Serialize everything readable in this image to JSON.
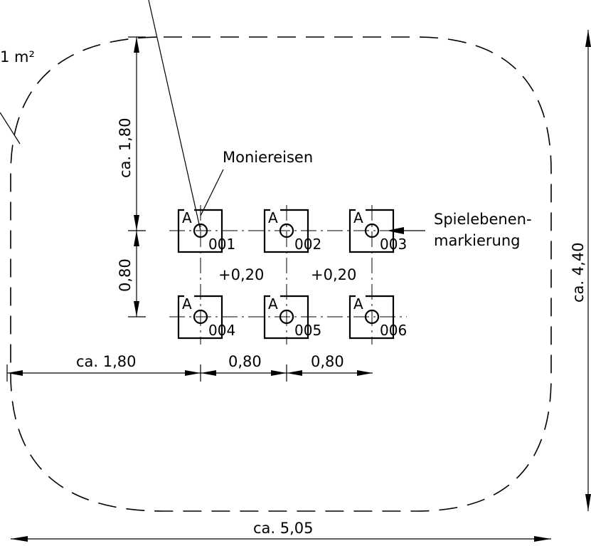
{
  "labels": {
    "area": "1 m²",
    "moniereisen": "Moniereisen",
    "spielebenen_line1": "Spielebenen-",
    "spielebenen_line2": "markierung",
    "dim_top_vertical": "ca. 1,80",
    "dim_left_vertical": "0,80",
    "dim_right_vertical": "ca. 4,40",
    "dim_bottom_left": "ca. 1,80",
    "dim_bottom_mid1": "0,80",
    "dim_bottom_mid2": "0,80",
    "dim_total_width": "ca. 5,05",
    "offset1": "+0,20",
    "offset2": "+0,20"
  },
  "markers": [
    {
      "letter": "A",
      "code": "001"
    },
    {
      "letter": "A",
      "code": "002"
    },
    {
      "letter": "A",
      "code": "003"
    },
    {
      "letter": "A",
      "code": "004"
    },
    {
      "letter": "A",
      "code": "005"
    },
    {
      "letter": "A",
      "code": "006"
    }
  ]
}
